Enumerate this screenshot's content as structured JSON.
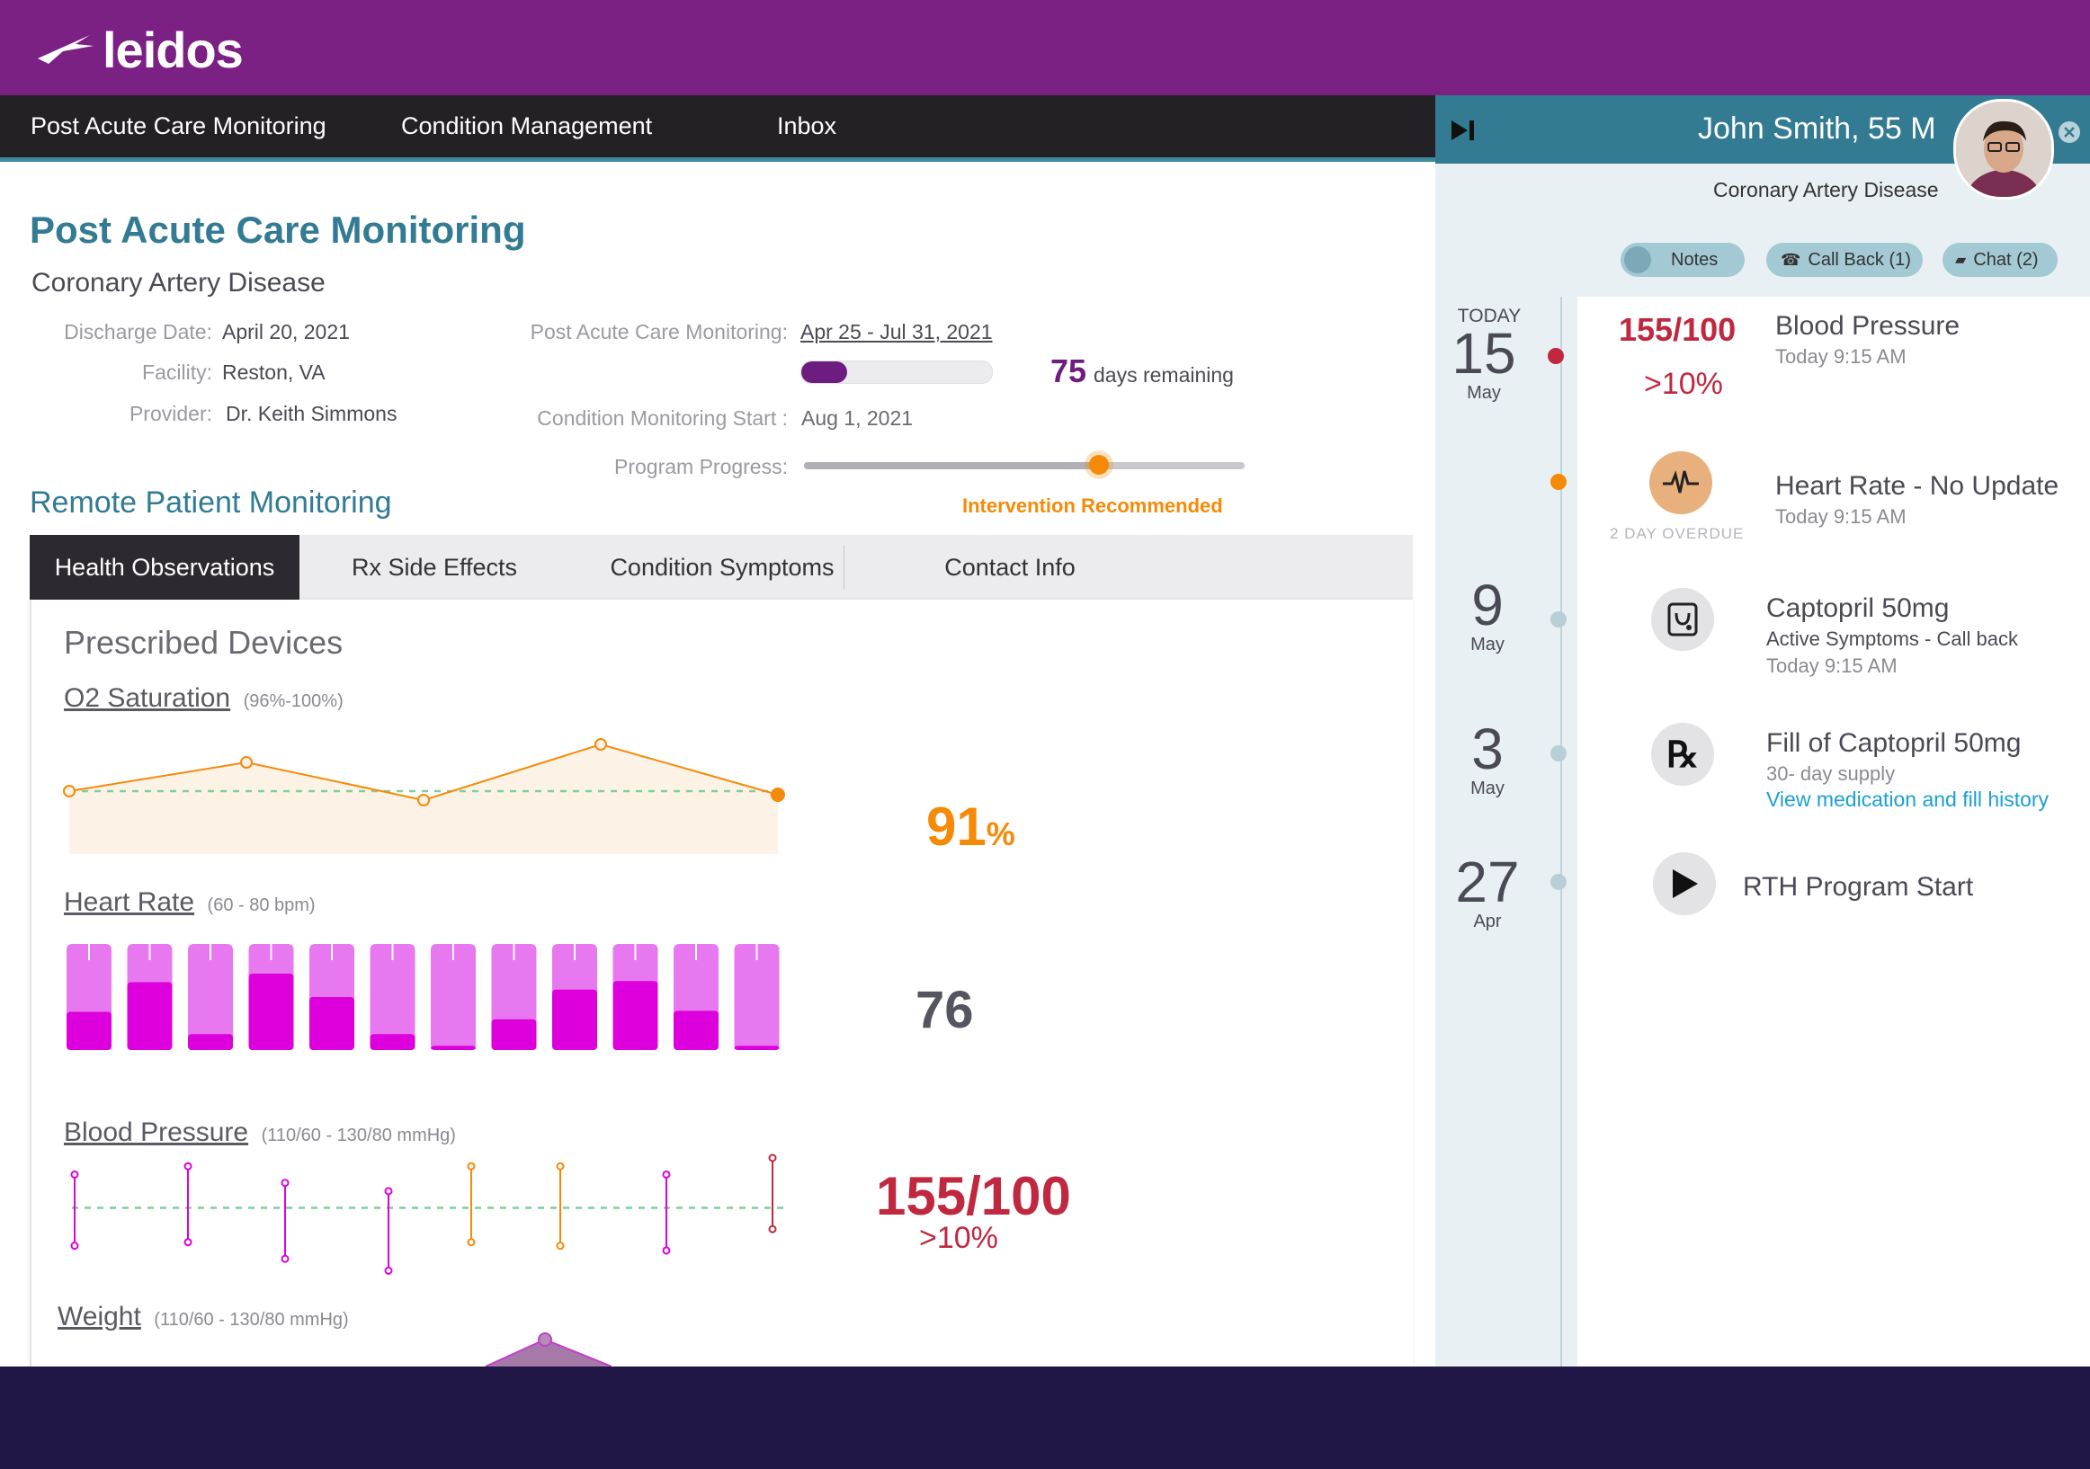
{
  "brand": {
    "logo_text": "leidos"
  },
  "nav": {
    "items": [
      "Post Acute Care Monitoring",
      "Condition Management",
      "Inbox"
    ]
  },
  "main": {
    "title": "Post Acute Care Monitoring",
    "condition": "Coronary Artery Disease",
    "discharge_label": "Discharge Date:",
    "discharge_value": "April 20, 2021",
    "facility_label": "Facility:",
    "facility_value": "Reston, VA",
    "provider_label": "Provider:",
    "provider_value": "Dr. Keith Simmons",
    "pac_label": "Post Acute Care Monitoring:",
    "pac_value": "Apr 25 - Jul 31, 2021",
    "pac_progress": 0.24,
    "days_remaining_num": "75",
    "days_remaining_text": "days remaining",
    "cms_label": "Condition Monitoring Start :",
    "cms_value": "Aug 1, 2021",
    "program_progress_label": "Program Progress:",
    "program_progress": 0.67,
    "intervention": "Intervention Recommended",
    "rpm_title": "Remote Patient Monitoring",
    "tabs": [
      "Health Observations",
      "Rx Side Effects",
      "Condition Symptoms",
      "Contact Info"
    ],
    "active_tab": 0,
    "devices_title": "Prescribed Devices",
    "o2": {
      "title": "O2 Saturation",
      "range": "(96%-100%)",
      "value": "91",
      "unit": "%"
    },
    "hr": {
      "title": "Heart Rate",
      "range": "(60 - 80 bpm)",
      "value": "76"
    },
    "bp": {
      "title": "Blood Pressure",
      "range": "(110/60 - 130/80 mmHg)",
      "value": "155/100",
      "sub": ">10%"
    },
    "weight": {
      "title": "Weight",
      "range": "(110/60 - 130/80 mmHg)"
    }
  },
  "colors": {
    "brand_purple": "#7b2183",
    "teal": "#327b92",
    "warning_orange": "#f58a07",
    "alert_red": "#c0283f",
    "magenta": "#dd00dd"
  },
  "right_panel": {
    "patient_name": "John Smith, 55 M",
    "condition": "Coronary Artery Disease",
    "buttons": {
      "notes": "Notes",
      "call_back": "Call Back  (1)",
      "chat": "Chat (2)"
    },
    "dates": [
      {
        "top": "TODAY",
        "day": "15",
        "month": "May"
      },
      {
        "day": "9",
        "month": "May"
      },
      {
        "day": "3",
        "month": "May"
      },
      {
        "day": "27",
        "month": "Apr"
      }
    ],
    "events": {
      "bp": {
        "value": "155/100",
        "sub": ">10%",
        "title": "Blood Pressure",
        "time": "Today 9:15 AM"
      },
      "hr": {
        "overdue": "2 DAY OVERDUE",
        "title": "Heart Rate - No Update",
        "time": "Today 9:15 AM"
      },
      "captopril": {
        "title": "Captopril 50mg",
        "sub": "Active Symptoms - Call back",
        "time": "Today 9:15 AM"
      },
      "fill": {
        "title": "Fill of Captopril 50mg",
        "sub": "30- day supply",
        "link": "View medication and fill history"
      },
      "rth": {
        "title": "RTH Program Start"
      }
    }
  },
  "chart_data": [
    {
      "type": "area",
      "title": "O2 Saturation",
      "subtitle": "(96%-100%)",
      "values": [
        96,
        97.6,
        95.5,
        98.6,
        95.8
      ],
      "reference": 96,
      "ylim": [
        93,
        100
      ]
    },
    {
      "type": "bar",
      "title": "Heart Rate",
      "subtitle": "(60 - 80 bpm)",
      "values": [
        0.36,
        0.64,
        0.15,
        0.72,
        0.5,
        0.15,
        0.04,
        0.29,
        0.57,
        0.65,
        0.37,
        0.04
      ],
      "ylim": [
        0,
        1
      ]
    },
    {
      "type": "scatter",
      "title": "Blood Pressure",
      "subtitle": "(110/60 - 130/80 mmHg)",
      "ranges": [
        {
          "high": 0.86,
          "low": 0.26,
          "color": "#dd00dd"
        },
        {
          "high": 0.93,
          "low": 0.29,
          "color": "#dd00dd"
        },
        {
          "high": 0.79,
          "low": 0.15,
          "color": "#dd00dd"
        },
        {
          "high": 0.72,
          "low": 0.05,
          "color": "#dd00dd"
        },
        {
          "high": 0.93,
          "low": 0.29,
          "color": "#f58a07"
        },
        {
          "high": 0.93,
          "low": 0.26,
          "color": "#f58a07"
        },
        {
          "high": 0.86,
          "low": 0.22,
          "color": "#dd00dd"
        },
        {
          "high": 1.0,
          "low": 0.4,
          "color": "#c0283f"
        }
      ],
      "reference": 0.58,
      "ylim": [
        0,
        1
      ]
    }
  ]
}
